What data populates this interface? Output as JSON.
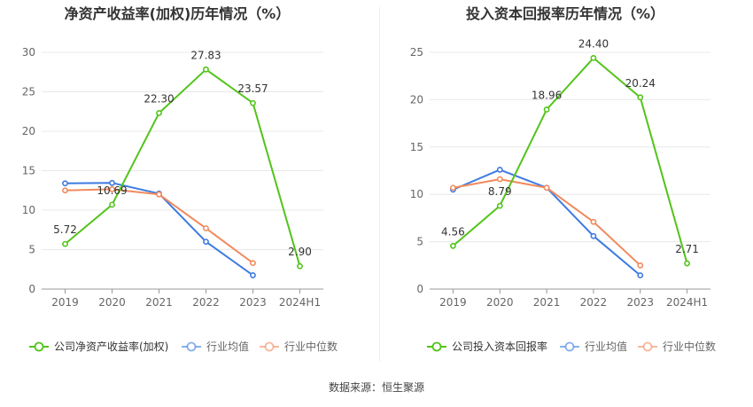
{
  "footer": {
    "source": "数据来源：恒生聚源"
  },
  "chart_data": [
    {
      "type": "line",
      "title": "净资产收益率(加权)历年情况（%）",
      "categories": [
        "2019",
        "2020",
        "2021",
        "2022",
        "2023",
        "2024H1"
      ],
      "ylim": [
        0,
        30
      ],
      "yticks": [
        0,
        5,
        10,
        15,
        20,
        25,
        30
      ],
      "grid": true,
      "legend_position": "bottom",
      "series": [
        {
          "name": "公司净资产收益率(加权)",
          "color": "#52c41a",
          "values": [
            5.72,
            10.69,
            22.3,
            27.83,
            23.57,
            2.9
          ],
          "labels": [
            "5.72",
            "10.69",
            "22.30",
            "27.83",
            "23.57",
            "2.90"
          ]
        },
        {
          "name": "行业均值",
          "color": "#3e7be0",
          "values": [
            13.4,
            13.45,
            12.1,
            6.0,
            1.75,
            null
          ]
        },
        {
          "name": "行业中位数",
          "color": "#f08a5d",
          "values": [
            12.5,
            12.65,
            12.0,
            7.7,
            3.3,
            null
          ]
        }
      ]
    },
    {
      "type": "line",
      "title": "投入资本回报率历年情况（%）",
      "categories": [
        "2019",
        "2020",
        "2021",
        "2022",
        "2023",
        "2024H1"
      ],
      "ylim": [
        0,
        25
      ],
      "yticks": [
        0,
        5,
        10,
        15,
        20,
        25
      ],
      "grid": true,
      "legend_position": "bottom",
      "series": [
        {
          "name": "公司投入资本回报率",
          "color": "#52c41a",
          "values": [
            4.56,
            8.79,
            18.96,
            24.4,
            20.24,
            2.71
          ],
          "labels": [
            "4.56",
            "8.79",
            "18.96",
            "24.40",
            "20.24",
            "2.71"
          ]
        },
        {
          "name": "行业均值",
          "color": "#3e7be0",
          "values": [
            10.5,
            12.6,
            10.7,
            5.6,
            1.45,
            null
          ]
        },
        {
          "name": "行业中位数",
          "color": "#f08a5d",
          "values": [
            10.7,
            11.6,
            10.7,
            7.1,
            2.5,
            null
          ]
        }
      ]
    }
  ]
}
